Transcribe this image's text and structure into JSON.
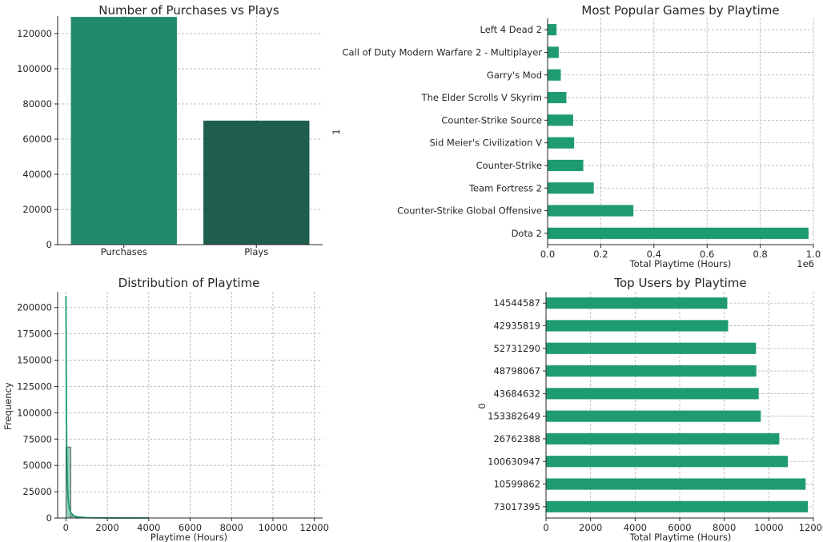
{
  "colors": {
    "teal": "#1f9b74",
    "purchases": "#218a6c",
    "plays": "#1f5e4f",
    "hist_fill": "#7fc8b2",
    "kde_line": "#1f9b74"
  },
  "chart_data": [
    {
      "id": "purchases_vs_plays",
      "type": "bar",
      "title": "Number of Purchases vs Plays",
      "categories": [
        "Purchases",
        "Plays"
      ],
      "values": [
        129500,
        70500
      ],
      "ylim": [
        0,
        130000
      ],
      "yticks": [
        0,
        20000,
        40000,
        60000,
        80000,
        100000,
        120000
      ],
      "ytick_labels": [
        "0",
        "20000",
        "40000",
        "60000",
        "80000",
        "100000",
        "120000"
      ],
      "xlabel": "",
      "ylabel": "",
      "grid": true
    },
    {
      "id": "popular_games",
      "type": "bar",
      "orientation": "horizontal",
      "title": "Most Popular Games by Playtime",
      "categories": [
        "Dota 2",
        "Counter-Strike Global Offensive",
        "Team Fortress 2",
        "Counter-Strike",
        "Sid Meier's Civilization V",
        "Counter-Strike Source",
        "The Elder Scrolls V Skyrim",
        "Garry's Mod",
        "Call of Duty Modern Warfare 2 - Multiplayer",
        "Left 4 Dead 2"
      ],
      "values": [
        981684,
        322771,
        173673,
        134262,
        99822,
        96076,
        70616,
        49725,
        42009,
        33597
      ],
      "xlim": [
        0,
        1000000
      ],
      "xticks": [
        0,
        200000,
        400000,
        600000,
        800000,
        1000000
      ],
      "xtick_labels": [
        "0.0",
        "0.2",
        "0.4",
        "0.6",
        "0.8",
        "1.0"
      ],
      "offset_text": "1e6",
      "xlabel": "Total Playtime (Hours)",
      "ylabel": "1",
      "grid": true
    },
    {
      "id": "playtime_distribution",
      "type": "histogram",
      "title": "Distribution of Playtime",
      "bins_visible": [
        {
          "x0": 0,
          "x1": 235,
          "count": 67500
        },
        {
          "x0": 235,
          "x1": 470,
          "count": 1800
        },
        {
          "x0": 470,
          "x1": 705,
          "count": 600
        },
        {
          "x0": 705,
          "x1": 940,
          "count": 250
        }
      ],
      "kde_x": [
        0,
        10,
        20,
        40,
        70,
        110,
        160,
        230,
        320,
        450,
        650,
        1000,
        1500,
        2500,
        4000
      ],
      "kde_y": [
        211000,
        175000,
        120000,
        62000,
        32000,
        18000,
        10000,
        5500,
        3000,
        1600,
        800,
        350,
        150,
        40,
        0
      ],
      "xlim": [
        0,
        12000
      ],
      "ylim": [
        0,
        215000
      ],
      "xticks": [
        0,
        2000,
        4000,
        6000,
        8000,
        10000,
        12000
      ],
      "xtick_labels": [
        "0",
        "2000",
        "4000",
        "6000",
        "8000",
        "10000",
        "12000"
      ],
      "yticks": [
        0,
        25000,
        50000,
        75000,
        100000,
        125000,
        150000,
        175000,
        200000
      ],
      "ytick_labels": [
        "0",
        "25000",
        "50000",
        "75000",
        "100000",
        "125000",
        "150000",
        "175000",
        "200000"
      ],
      "xlabel": "Playtime (Hours)",
      "ylabel": "Frequency",
      "grid": true
    },
    {
      "id": "top_users",
      "type": "bar",
      "orientation": "horizontal",
      "title": "Top Users by Playtime",
      "categories": [
        "73017395",
        "10599862",
        "100630947",
        "26762388",
        "153382649",
        "43684632",
        "48798067",
        "52731290",
        "42935819",
        "14544587"
      ],
      "values": [
        11754,
        11651,
        10853,
        10470,
        9640,
        9546,
        9437,
        9426,
        8174,
        8136
      ],
      "xlim": [
        0,
        12000
      ],
      "xticks": [
        0,
        2000,
        4000,
        6000,
        8000,
        10000,
        12000
      ],
      "xtick_labels": [
        "0",
        "2000",
        "4000",
        "6000",
        "8000",
        "10000",
        "12000"
      ],
      "xlabel": "Total Playtime (Hours)",
      "ylabel": "0",
      "grid": true
    }
  ]
}
